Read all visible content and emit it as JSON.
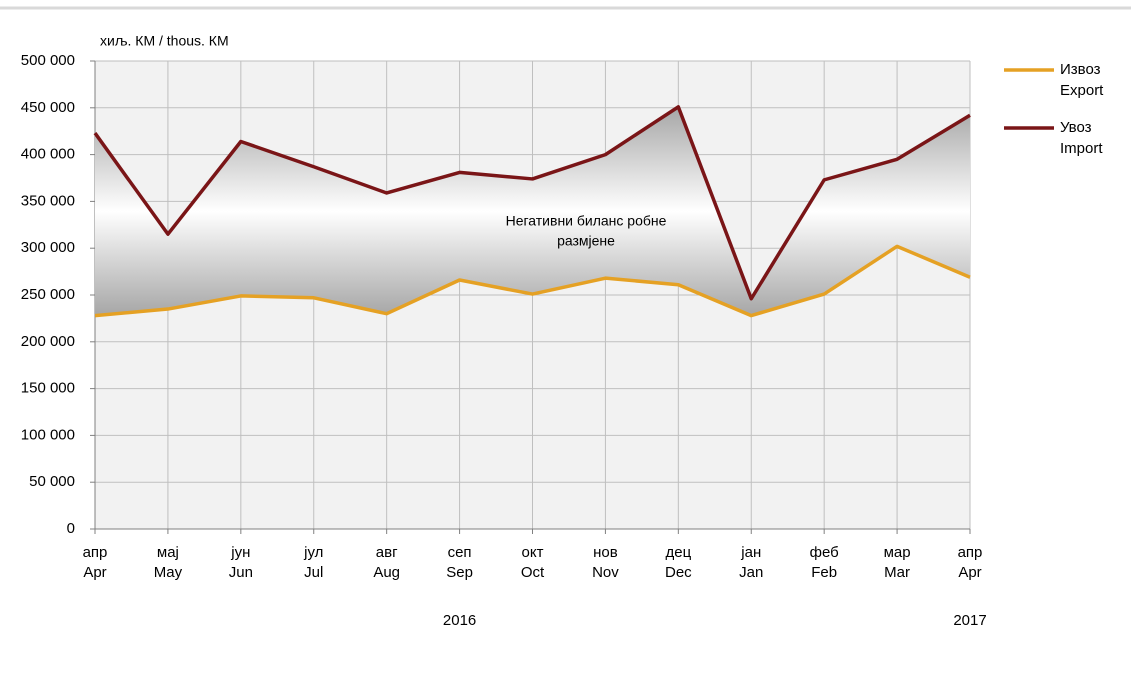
{
  "chart_data": {
    "type": "line",
    "y_unit_label": "хиљ. КМ / thous. КМ",
    "annotation": [
      "Негативни биланс робне",
      "размјене"
    ],
    "categories": [
      [
        "апр",
        "Apr"
      ],
      [
        "мај",
        "May"
      ],
      [
        "јун",
        "Jun"
      ],
      [
        "јул",
        "Jul"
      ],
      [
        "авг",
        "Aug"
      ],
      [
        "сеп",
        "Sep"
      ],
      [
        "окт",
        "Oct"
      ],
      [
        "нов",
        "Nov"
      ],
      [
        "дец",
        "Dec"
      ],
      [
        "јан",
        "Jan"
      ],
      [
        "феб",
        "Feb"
      ],
      [
        "мар",
        "Mar"
      ],
      [
        "апр",
        "Apr"
      ]
    ],
    "years": [
      "2016",
      "2017"
    ],
    "series": [
      {
        "name": [
          "Извоз",
          "Export"
        ],
        "color": "#e5a124",
        "values": [
          228000,
          235000,
          249000,
          247000,
          230000,
          266000,
          251000,
          268000,
          261000,
          228000,
          251000,
          302000,
          269000
        ]
      },
      {
        "name": [
          "Увоз",
          "Import"
        ],
        "color": "#7a1517",
        "values": [
          423000,
          315000,
          414000,
          387000,
          359000,
          381000,
          374000,
          400000,
          451000,
          246000,
          373000,
          395000,
          442000
        ]
      }
    ],
    "ylim": [
      0,
      500000
    ],
    "yticks": [
      0,
      {
        "value": 50000,
        "label": "50 000"
      },
      {
        "value": 100000,
        "label": "100 000"
      },
      {
        "value": 150000,
        "label": "150 000"
      },
      {
        "value": 200000,
        "label": "200 000"
      },
      {
        "value": 250000,
        "label": "250 000"
      },
      {
        "value": 300000,
        "label": "300 000"
      },
      {
        "value": 350000,
        "label": "350 000"
      },
      {
        "value": 400000,
        "label": "400 000"
      },
      {
        "value": 450000,
        "label": "450 000"
      },
      {
        "value": 500000,
        "label": "500 000"
      }
    ],
    "grid": true,
    "legend": "right"
  }
}
